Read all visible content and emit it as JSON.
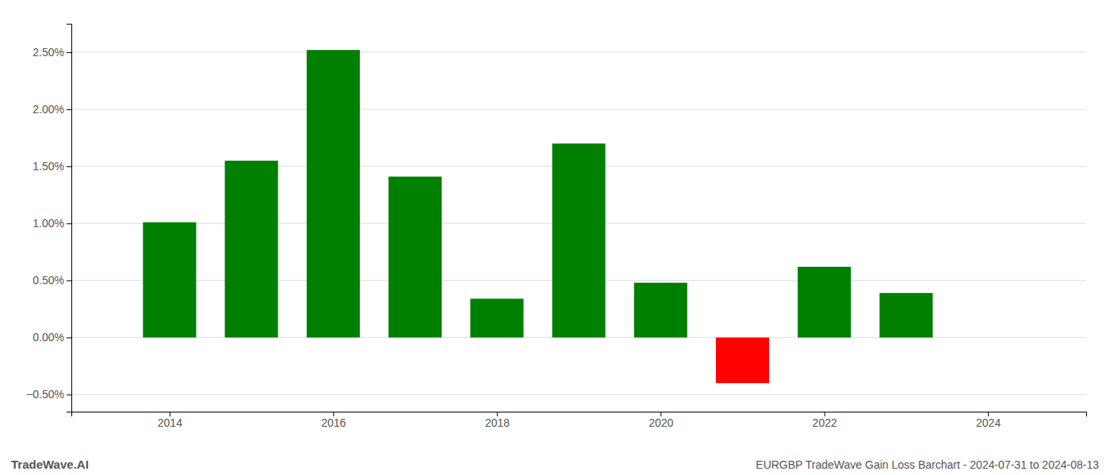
{
  "chart_data": {
    "type": "bar",
    "x": [
      2014,
      2015,
      2016,
      2017,
      2018,
      2019,
      2020,
      2021,
      2022,
      2023
    ],
    "values": [
      1.01,
      1.55,
      2.52,
      1.41,
      0.34,
      1.7,
      0.48,
      -0.4,
      0.62,
      0.39
    ],
    "colors": [
      "#008000",
      "#008000",
      "#008000",
      "#008000",
      "#008000",
      "#008000",
      "#008000",
      "#ff0000",
      "#008000",
      "#008000"
    ],
    "xlim": [
      2012.8,
      2025.2
    ],
    "xticks": [
      2014,
      2016,
      2018,
      2020,
      2022,
      2024
    ],
    "ylim": [
      -0.65,
      2.75
    ],
    "yticks": [
      {
        "value": -0.5,
        "label": "−0.50%"
      },
      {
        "value": 0.0,
        "label": "0.00%"
      },
      {
        "value": 0.5,
        "label": "0.50%"
      },
      {
        "value": 1.0,
        "label": "1.00%"
      },
      {
        "value": 1.5,
        "label": "1.50%"
      },
      {
        "value": 2.0,
        "label": "2.00%"
      },
      {
        "value": 2.5,
        "label": "2.50%"
      }
    ],
    "grid": true,
    "annotations": [
      "TradeWave.AI",
      "EURGBP TradeWave Gain Loss Barchart - 2024-07-31 to 2024-08-13"
    ]
  }
}
